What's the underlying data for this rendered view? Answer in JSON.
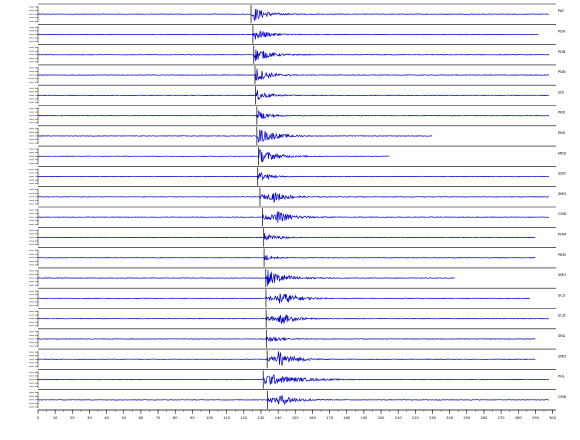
{
  "chart_data": {
    "type": "line",
    "title": "",
    "xlabel": "",
    "ylabel": "",
    "grid": false,
    "legend": "none",
    "trace_color": "#0000cc",
    "pick_color": "#000000",
    "x_ticks": [
      0,
      10,
      20,
      30,
      40,
      50,
      60,
      70,
      80,
      90,
      100,
      110,
      120,
      130,
      140,
      150,
      160,
      170,
      180,
      190,
      200,
      210,
      220,
      230,
      240,
      250,
      260,
      270,
      280,
      290,
      300
    ],
    "xlim": [
      0,
      302
    ],
    "traces": [
      {
        "station": "PAF",
        "pick": 124.2,
        "onset": 125,
        "peak": 0.8,
        "decay": 7,
        "end": 298
      },
      {
        "station": "PDH",
        "pick": 125.3,
        "onset": 126,
        "peak": 0.65,
        "decay": 7,
        "end": 292
      },
      {
        "station": "PDB",
        "pick": 125.8,
        "onset": 126.5,
        "peak": 0.7,
        "decay": 8,
        "end": 298
      },
      {
        "station": "PDN",
        "pick": 126.5,
        "onset": 127,
        "peak": 0.75,
        "decay": 7,
        "end": 298
      },
      {
        "station": "SDI",
        "pick": 126.9,
        "onset": 127.5,
        "peak": 0.55,
        "decay": 6,
        "end": 298
      },
      {
        "station": "PKD",
        "pick": 127.6,
        "onset": 128.5,
        "peak": 0.45,
        "decay": 6,
        "end": 298
      },
      {
        "station": "PKB",
        "pick": 127.6,
        "onset": 128.5,
        "peak": 0.8,
        "decay": 9,
        "end": 230
      },
      {
        "station": "MKD",
        "pick": 128.6,
        "onset": 129,
        "peak": 0.7,
        "decay": 9,
        "end": 205
      },
      {
        "station": "SDD",
        "pick": 128.1,
        "onset": 129,
        "peak": 0.5,
        "decay": 6,
        "end": 298
      },
      {
        "station": "SMD",
        "pick": 129.4,
        "onset": 136,
        "peak": 0.6,
        "decay": 8,
        "end": 298
      },
      {
        "station": "CMD",
        "pick": 130.9,
        "onset": 138,
        "peak": 0.7,
        "decay": 9,
        "end": 298
      },
      {
        "station": "PHM",
        "pick": 131.6,
        "onset": 132,
        "peak": 0.45,
        "decay": 6,
        "end": 290
      },
      {
        "station": "PBM",
        "pick": 131.8,
        "onset": 132,
        "peak": 0.4,
        "decay": 4,
        "end": 290
      },
      {
        "station": "SMO",
        "pick": 132.8,
        "onset": 133.5,
        "peak": 0.85,
        "decay": 10,
        "end": 243
      },
      {
        "station": "SCS",
        "pick": 132.9,
        "onset": 140,
        "peak": 0.75,
        "decay": 9,
        "end": 287
      },
      {
        "station": "SCD",
        "pick": 133,
        "onset": 140,
        "peak": 0.7,
        "decay": 7,
        "end": 298
      },
      {
        "station": "SRA",
        "pick": 133.1,
        "onset": 134,
        "peak": 0.45,
        "decay": 6,
        "end": 290
      },
      {
        "station": "SMD",
        "pick": 133.6,
        "onset": 140,
        "peak": 0.85,
        "decay": 8,
        "end": 290
      },
      {
        "station": "PHL",
        "pick": 131.3,
        "onset": 132,
        "peak": 0.65,
        "decay": 16,
        "end": 298
      },
      {
        "station": "CMB",
        "pick": 133.8,
        "onset": 140,
        "peak": 0.6,
        "decay": 9,
        "end": 298
      }
    ]
  }
}
